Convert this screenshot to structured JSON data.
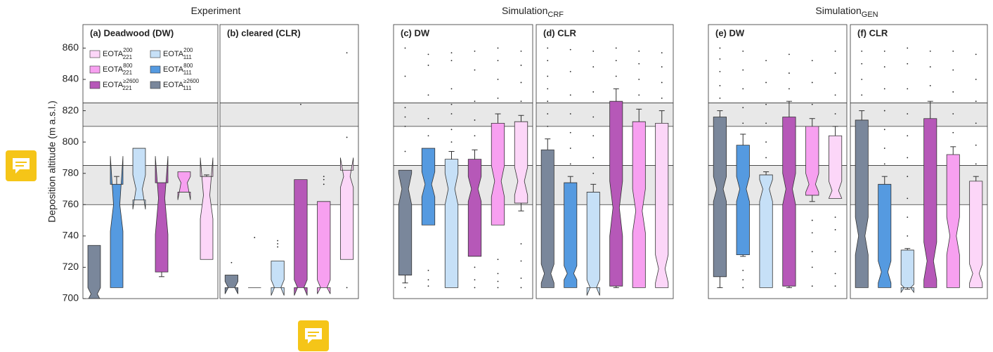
{
  "groups": [
    {
      "text": "Experiment"
    },
    {
      "text": "Simulation",
      "sub": "CRF"
    },
    {
      "text": "Simulation",
      "sub": "GEN"
    }
  ],
  "ylabel": "Deposition altitude (m a.s.l.)",
  "bands": [
    [
      760,
      785
    ],
    [
      810,
      825
    ]
  ],
  "chart_data": [
    {
      "type": "box",
      "title": "(a) Deadwood (DW)",
      "ylim": [
        700,
        875
      ],
      "yticks": [
        700,
        720,
        740,
        760,
        780,
        800,
        820,
        840,
        860
      ],
      "legend": [
        {
          "name": "EOTA",
          "sup": "200",
          "sub": "221",
          "color": "#fcd6f8"
        },
        {
          "name": "EOTA",
          "sup": "200",
          "sub": "111",
          "color": "#c6e0f7"
        },
        {
          "name": "EOTA",
          "sup": "800",
          "sub": "221",
          "color": "#f7a0f0"
        },
        {
          "name": "EOTA",
          "sup": "800",
          "sub": "111",
          "color": "#559ae0"
        },
        {
          "name": "EOTA",
          "sup": "≥2600",
          "sub": "221",
          "color": "#b658b8"
        },
        {
          "name": "EOTA",
          "sup": "≥2600",
          "sub": "111",
          "color": "#7a879b"
        }
      ],
      "series": [
        {
          "color": "#7a879b",
          "stats": {
            "low": 700,
            "q1": 700,
            "median": 703,
            "q3": 734,
            "high": 734
          },
          "notch": [
            699,
            707
          ],
          "outliers": []
        },
        {
          "color": "#559ae0",
          "stats": {
            "low": 707,
            "q1": 707,
            "median": 760,
            "q3": 773,
            "high": 778
          },
          "notch": [
            743,
            791
          ],
          "outliers": []
        },
        {
          "color": "#c6e0f7",
          "stats": {
            "low": 763,
            "q1": 763,
            "median": 770,
            "q3": 796,
            "high": 796
          },
          "notch": [
            757,
            779
          ],
          "outliers": []
        },
        {
          "color": "#b658b8",
          "stats": {
            "low": 714,
            "q1": 717,
            "median": 764,
            "q3": 774,
            "high": 774
          },
          "notch": [
            741,
            791
          ],
          "outliers": []
        },
        {
          "color": "#f7a0f0",
          "stats": {
            "low": 768,
            "q1": 768,
            "median": 774,
            "q3": 781,
            "high": 781
          },
          "notch": [
            763,
            778
          ],
          "outliers": []
        },
        {
          "color": "#fcd6f8",
          "stats": {
            "low": 725,
            "q1": 725,
            "median": 766,
            "q3": 778,
            "high": 779
          },
          "notch": [
            751,
            790
          ],
          "outliers": []
        }
      ]
    },
    {
      "type": "box",
      "title": "(b) cleared (CLR)",
      "ylim": [
        700,
        875
      ],
      "series": [
        {
          "color": "#7a879b",
          "stats": {
            "low": 707,
            "q1": 707,
            "median": 707,
            "q3": 715,
            "high": 715
          },
          "notch": [
            703,
            711
          ],
          "outliers": [
            723
          ]
        },
        {
          "color": "#559ae0",
          "stats": {
            "low": 707,
            "q1": 707,
            "median": 707,
            "q3": 707,
            "high": 707
          },
          "notch": [
            707,
            707
          ],
          "outliers": [
            739
          ]
        },
        {
          "color": "#c6e0f7",
          "stats": {
            "low": 707,
            "q1": 707,
            "median": 707,
            "q3": 724,
            "high": 724
          },
          "notch": [
            702,
            712
          ],
          "outliers": [
            733,
            735,
            737
          ]
        },
        {
          "color": "#b658b8",
          "stats": {
            "low": 707,
            "q1": 707,
            "median": 707,
            "q3": 776,
            "high": 776
          },
          "notch": [
            702,
            712
          ],
          "outliers": [
            824
          ]
        },
        {
          "color": "#f7a0f0",
          "stats": {
            "low": 707,
            "q1": 707,
            "median": 707,
            "q3": 762,
            "high": 762
          },
          "notch": [
            703,
            712
          ],
          "outliers": [
            773,
            776,
            778
          ]
        },
        {
          "color": "#fcd6f8",
          "stats": {
            "low": 725,
            "q1": 725,
            "median": 778,
            "q3": 782,
            "high": 782
          },
          "notch": [
            771,
            790
          ],
          "outliers": [
            707,
            803,
            857
          ]
        }
      ]
    },
    {
      "type": "box",
      "title": "(c) DW",
      "ylim": [
        700,
        875
      ],
      "series": [
        {
          "color": "#7a879b",
          "stats": {
            "low": 710,
            "q1": 715,
            "median": 770,
            "q3": 782,
            "high": 782
          },
          "notch": [
            760,
            780
          ],
          "outliers": [
            707,
            794,
            810,
            816,
            822,
            842,
            860
          ]
        },
        {
          "color": "#559ae0",
          "stats": {
            "low": 747,
            "q1": 747,
            "median": 773,
            "q3": 796,
            "high": 796
          },
          "notch": [
            765,
            781
          ],
          "outliers": [
            708,
            712,
            718,
            804,
            815,
            830,
            849,
            856
          ]
        },
        {
          "color": "#c6e0f7",
          "stats": {
            "low": 707,
            "q1": 707,
            "median": 770,
            "q3": 789,
            "high": 794
          },
          "notch": [
            760,
            780
          ],
          "outliers": [
            800,
            808,
            818,
            824,
            834,
            852,
            857
          ]
        },
        {
          "color": "#b658b8",
          "stats": {
            "low": 727,
            "q1": 727,
            "median": 770,
            "q3": 789,
            "high": 795
          },
          "notch": [
            762,
            778
          ],
          "outliers": [
            707,
            712,
            720,
            804,
            814,
            826,
            846,
            858
          ]
        },
        {
          "color": "#f7a0f0",
          "stats": {
            "low": 747,
            "q1": 747,
            "median": 775,
            "q3": 812,
            "high": 818
          },
          "notch": [
            765,
            785
          ],
          "outliers": [
            707,
            711,
            716,
            725,
            828,
            840,
            852,
            860
          ]
        },
        {
          "color": "#fcd6f8",
          "stats": {
            "low": 756,
            "q1": 761,
            "median": 775,
            "q3": 813,
            "high": 817
          },
          "notch": [
            766,
            784
          ],
          "outliers": [
            707,
            713,
            724,
            735,
            826,
            838,
            849,
            858
          ]
        }
      ]
    },
    {
      "type": "box",
      "title": "(d) CLR",
      "ylim": [
        700,
        875
      ],
      "series": [
        {
          "color": "#7a879b",
          "stats": {
            "low": 707,
            "q1": 707,
            "median": 716,
            "q3": 795,
            "high": 802
          },
          "notch": [
            710,
            722
          ],
          "outliers": [
            810,
            818,
            826,
            834,
            842,
            852,
            860
          ]
        },
        {
          "color": "#559ae0",
          "stats": {
            "low": 707,
            "q1": 707,
            "median": 716,
            "q3": 774,
            "high": 778
          },
          "notch": [
            712,
            721
          ],
          "outliers": [
            786,
            796,
            806,
            818,
            830,
            845,
            859
          ]
        },
        {
          "color": "#c6e0f7",
          "stats": {
            "low": 707,
            "q1": 707,
            "median": 707,
            "q3": 768,
            "high": 773
          },
          "notch": [
            702,
            712
          ],
          "outliers": [
            780,
            790,
            804,
            816,
            832,
            848,
            858
          ]
        },
        {
          "color": "#b658b8",
          "stats": {
            "low": 707,
            "q1": 708,
            "median": 758,
            "q3": 826,
            "high": 834
          },
          "notch": [
            740,
            775
          ],
          "outliers": [
            842,
            852,
            860
          ]
        },
        {
          "color": "#f7a0f0",
          "stats": {
            "low": 707,
            "q1": 707,
            "median": 756,
            "q3": 813,
            "high": 821
          },
          "notch": [
            742,
            770
          ],
          "outliers": [
            830,
            840,
            850,
            858
          ]
        },
        {
          "color": "#fcd6f8",
          "stats": {
            "low": 707,
            "q1": 707,
            "median": 719,
            "q3": 812,
            "high": 820
          },
          "notch": [
            710,
            728
          ],
          "outliers": [
            828,
            838,
            848,
            857
          ]
        }
      ]
    },
    {
      "type": "box",
      "title": "(e) DW",
      "ylim": [
        700,
        875
      ],
      "series": [
        {
          "color": "#7a879b",
          "stats": {
            "low": 707,
            "q1": 714,
            "median": 770,
            "q3": 816,
            "high": 820
          },
          "notch": [
            762,
            778
          ],
          "outliers": [
            828,
            836,
            845,
            853,
            860
          ]
        },
        {
          "color": "#559ae0",
          "stats": {
            "low": 727,
            "q1": 728,
            "median": 770,
            "q3": 798,
            "high": 805
          },
          "notch": [
            762,
            778
          ],
          "outliers": [
            707,
            712,
            718,
            812,
            822,
            834,
            846,
            858
          ]
        },
        {
          "color": "#c6e0f7",
          "stats": {
            "low": 707,
            "q1": 707,
            "median": 770,
            "q3": 779,
            "high": 781
          },
          "notch": [
            762,
            776
          ],
          "outliers": [
            790,
            800,
            812,
            824,
            838,
            852
          ]
        },
        {
          "color": "#b658b8",
          "stats": {
            "low": 707,
            "q1": 708,
            "median": 770,
            "q3": 816,
            "high": 826
          },
          "notch": [
            760,
            780
          ],
          "outliers": [
            834,
            844,
            856
          ]
        },
        {
          "color": "#f7a0f0",
          "stats": {
            "low": 762,
            "q1": 766,
            "median": 773,
            "q3": 810,
            "high": 815
          },
          "notch": [
            768,
            780
          ],
          "outliers": [
            708,
            720,
            730,
            742,
            750,
            824,
            838,
            852
          ]
        },
        {
          "color": "#fcd6f8",
          "stats": {
            "low": 764,
            "q1": 764,
            "median": 769,
            "q3": 804,
            "high": 810
          },
          "notch": [
            764,
            775
          ],
          "outliers": [
            708,
            716,
            730,
            744,
            752,
            818,
            830,
            844,
            858
          ]
        }
      ]
    },
    {
      "type": "box",
      "title": "(f) CLR",
      "ylim": [
        700,
        875
      ],
      "series": [
        {
          "color": "#7a879b",
          "stats": {
            "low": 707,
            "q1": 707,
            "median": 740,
            "q3": 814,
            "high": 820
          },
          "notch": [
            728,
            752
          ],
          "outliers": [
            830,
            840,
            850,
            858
          ]
        },
        {
          "color": "#559ae0",
          "stats": {
            "low": 707,
            "q1": 707,
            "median": 717,
            "q3": 773,
            "high": 778
          },
          "notch": [
            710,
            724
          ],
          "outliers": [
            786,
            796,
            808,
            820,
            834,
            848,
            858
          ]
        },
        {
          "color": "#c6e0f7",
          "stats": {
            "low": 706,
            "q1": 707,
            "median": 707,
            "q3": 731,
            "high": 732
          },
          "notch": [
            704,
            709
          ],
          "outliers": [
            740,
            752,
            764,
            778,
            790,
            804,
            818,
            834,
            850,
            860
          ]
        },
        {
          "color": "#b658b8",
          "stats": {
            "low": 707,
            "q1": 707,
            "median": 724,
            "q3": 815,
            "high": 826
          },
          "notch": [
            712,
            736
          ],
          "outliers": [
            836,
            848,
            858
          ]
        },
        {
          "color": "#f7a0f0",
          "stats": {
            "low": 707,
            "q1": 707,
            "median": 740,
            "q3": 792,
            "high": 797
          },
          "notch": [
            728,
            752
          ],
          "outliers": [
            806,
            818,
            832,
            846,
            858
          ]
        },
        {
          "color": "#fcd6f8",
          "stats": {
            "low": 707,
            "q1": 707,
            "median": 716,
            "q3": 775,
            "high": 778
          },
          "notch": [
            710,
            722
          ],
          "outliers": [
            786,
            798,
            812,
            826,
            840,
            856
          ]
        }
      ]
    }
  ]
}
